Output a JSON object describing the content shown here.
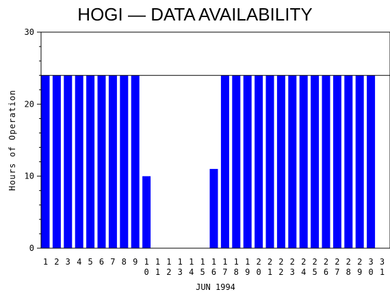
{
  "chart_data": {
    "type": "bar",
    "title": "HOGI — DATA AVAILABILITY",
    "xlabel": "JUN 1994",
    "ylabel": "Hours of Operation",
    "ylim": [
      0,
      30
    ],
    "yticks": [
      0,
      10,
      20,
      30
    ],
    "reference_line": 24,
    "bar_color": "#0000ff",
    "categories": [
      "1",
      "2",
      "3",
      "4",
      "5",
      "6",
      "7",
      "8",
      "9",
      "10",
      "11",
      "12",
      "13",
      "14",
      "15",
      "16",
      "17",
      "18",
      "19",
      "20",
      "21",
      "22",
      "23",
      "24",
      "25",
      "26",
      "27",
      "28",
      "29",
      "30",
      "31"
    ],
    "values": [
      24,
      24,
      24,
      24,
      24,
      24,
      24,
      24,
      24,
      10,
      0,
      0,
      0,
      0,
      0,
      11,
      24,
      24,
      24,
      24,
      24,
      24,
      24,
      24,
      24,
      24,
      24,
      24,
      24,
      24,
      null
    ],
    "grid": false,
    "legend": "none"
  }
}
